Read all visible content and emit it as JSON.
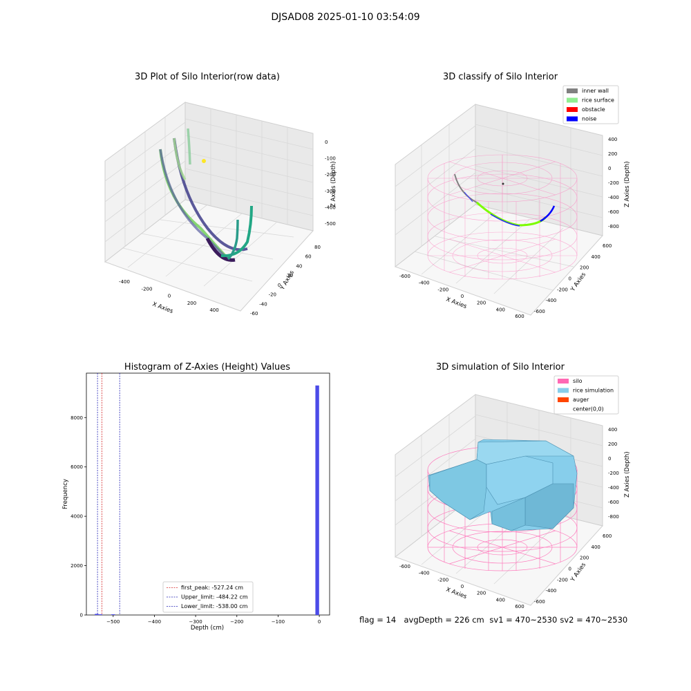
{
  "suptitle": "DJSAD08 2025-01-10 03:54:09",
  "panels": {
    "raw": {
      "title": "3D Plot of Silo Interior(row data)",
      "xlabel": "X Axies",
      "ylabel": "Y Axies",
      "zlabel": "Z Axies (Depth)",
      "xticks": [
        "-400",
        "-200",
        "0",
        "200",
        "400"
      ],
      "yticks": [
        "-60",
        "-40",
        "-20",
        "0",
        "20",
        "40",
        "60",
        "80"
      ],
      "zticks": [
        "0",
        "-100",
        "-200",
        "-300",
        "-400",
        "-500"
      ]
    },
    "classify": {
      "title": "3D classify of Silo Interior",
      "xlabel": "X Axies",
      "ylabel": "Y Axies",
      "zlabel": "Z Axies (Depth)",
      "xticks": [
        "-600",
        "-400",
        "-200",
        "0",
        "200",
        "400",
        "600"
      ],
      "yticks": [
        "-600",
        "-400",
        "-200",
        "0",
        "200",
        "400",
        "600"
      ],
      "zticks": [
        "400",
        "200",
        "0",
        "-200",
        "-400",
        "-600",
        "-800"
      ],
      "legend": [
        {
          "label": "inner wall",
          "color": "#808080"
        },
        {
          "label": "rice surface",
          "color": "#90ee90"
        },
        {
          "label": "obstacle",
          "color": "#ff0000"
        },
        {
          "label": "noise",
          "color": "#0000ff"
        }
      ]
    },
    "simulation": {
      "title": "3D simulation of Silo Interior",
      "xlabel": "X Axies",
      "ylabel": "Y Axies",
      "zlabel": "Z Axies (Depth)",
      "xticks": [
        "-600",
        "-400",
        "-200",
        "0",
        "200",
        "400",
        "600"
      ],
      "yticks": [
        "-600",
        "-400",
        "-200",
        "0",
        "200",
        "400",
        "600"
      ],
      "zticks": [
        "400",
        "200",
        "0",
        "-200",
        "-400",
        "-600",
        "-800"
      ],
      "legend": [
        {
          "label": "silo",
          "color": "#ff69b4"
        },
        {
          "label": "rice simulation",
          "color": "#87ceeb"
        },
        {
          "label": "auger",
          "color": "#ff4500"
        },
        {
          "label": "center(0,0)",
          "color": "#ffffff"
        }
      ]
    }
  },
  "chart_data": {
    "type": "bar",
    "title": "Histogram of Z-Axies (Height) Values",
    "xlabel": "Depth (cm)",
    "ylabel": "Frequency",
    "xlim": [
      -565,
      25
    ],
    "ylim": [
      0,
      9800
    ],
    "xticks": [
      -500,
      -400,
      -300,
      -200,
      -100,
      0
    ],
    "yticks": [
      0,
      2000,
      4000,
      6000,
      8000
    ],
    "bin_width": 9,
    "bars": [
      {
        "x": -540,
        "value": 45
      },
      {
        "x": -531,
        "value": 20
      },
      {
        "x": -500,
        "value": 15
      },
      {
        "x": -5,
        "value": 9300
      }
    ],
    "bar_color": "#4b4be8",
    "vlines": [
      {
        "label": "first_peak: -527.24 cm",
        "x": -527.24,
        "color": "#d62728"
      },
      {
        "label": "Upper_limit: -484.22 cm",
        "x": -484.22,
        "color": "#1f1fb4"
      },
      {
        "label": "Lower_limit: -538.00 cm",
        "x": -538.0,
        "color": "#1f1fb4"
      }
    ],
    "legend_position": "lower-center"
  },
  "footer": {
    "flag": "flag = 14",
    "avg": "avgDepth = 226 cm",
    "sv1": "sv1 = 470~2530",
    "sv2": "sv2 = 470~2530"
  }
}
